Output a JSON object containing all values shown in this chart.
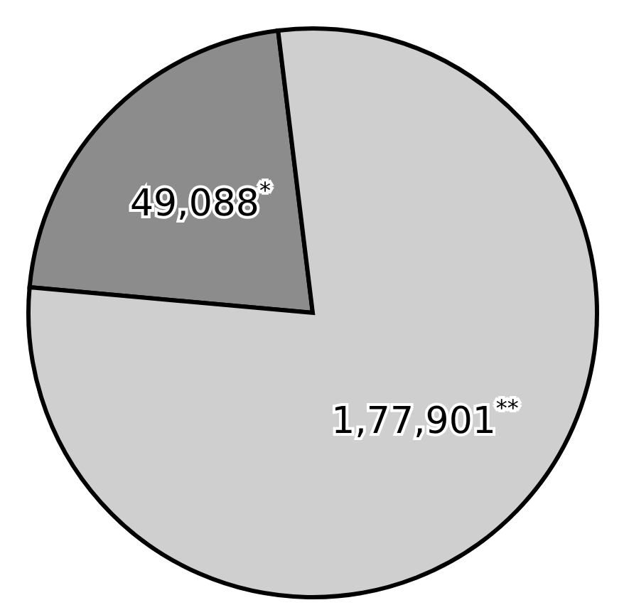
{
  "chart_data": {
    "type": "pie",
    "categories": [
      null,
      null
    ],
    "values": [
      49088,
      177901
    ],
    "value_labels": [
      "49,088$^{*}$",
      "1,77,901$^{**}$"
    ],
    "colors": [
      "#8c8c8c",
      "#cfcfcf"
    ]
  }
}
